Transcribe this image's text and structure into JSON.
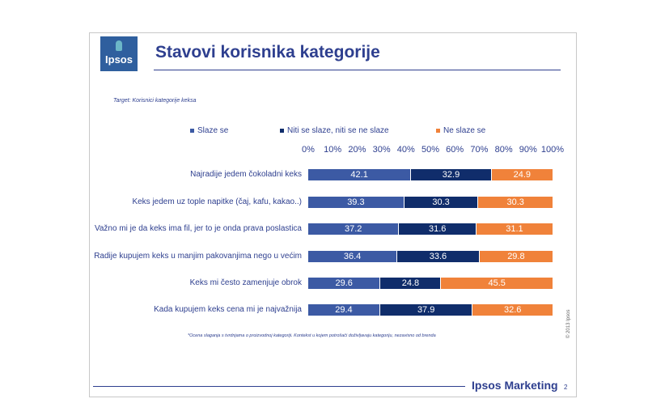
{
  "slide": {
    "title": "Stavovi korisnika kategorije",
    "target": "Target: Korisnici kategorije keksa",
    "footnote": "*Ocena slaganja s tvrdnjama o proizvodnoj kategoriji. Kontekst u kojem potrošači doživljavaju kategoriju, nezavisno od brenda",
    "copyright": "© 2013 Ipsos",
    "brand": "Ipsos Marketing",
    "page_number": "2",
    "logo_text": "Ipsos"
  },
  "colors": {
    "slazem_se": "#3c5aa4",
    "niti": "#102d6b",
    "ne_slazem_se": "#f0823a",
    "text": "#2e3f8f"
  },
  "chart_data": {
    "type": "bar",
    "orientation": "horizontal",
    "stacked": true,
    "percent_stacked": true,
    "legend_position": "top",
    "xlim": [
      0,
      100
    ],
    "x_ticks": [
      "0%",
      "10%",
      "20%",
      "30%",
      "40%",
      "50%",
      "60%",
      "70%",
      "80%",
      "90%",
      "100%"
    ],
    "categories": [
      "Najradije jedem čokoladni keks",
      "Keks jedem uz tople napitke (čaj, kafu, kakao..)",
      "Važno mi je da keks ima fil, jer to je onda prava poslastica",
      "Radije kupujem keks u manjim pakovanjima nego u većim",
      "Keks mi često zamenjuje obrok",
      "Kada kupujem keks cena mi je najvažnija"
    ],
    "series": [
      {
        "name": "Slaze se",
        "values": [
          42.1,
          39.3,
          37.2,
          36.4,
          29.6,
          29.4
        ]
      },
      {
        "name": "Niti se slaze, niti se ne slaze",
        "values": [
          32.9,
          30.3,
          31.6,
          33.6,
          24.8,
          37.9
        ]
      },
      {
        "name": "Ne slaze se",
        "values": [
          24.9,
          30.3,
          31.1,
          29.8,
          45.5,
          32.6
        ]
      }
    ]
  }
}
